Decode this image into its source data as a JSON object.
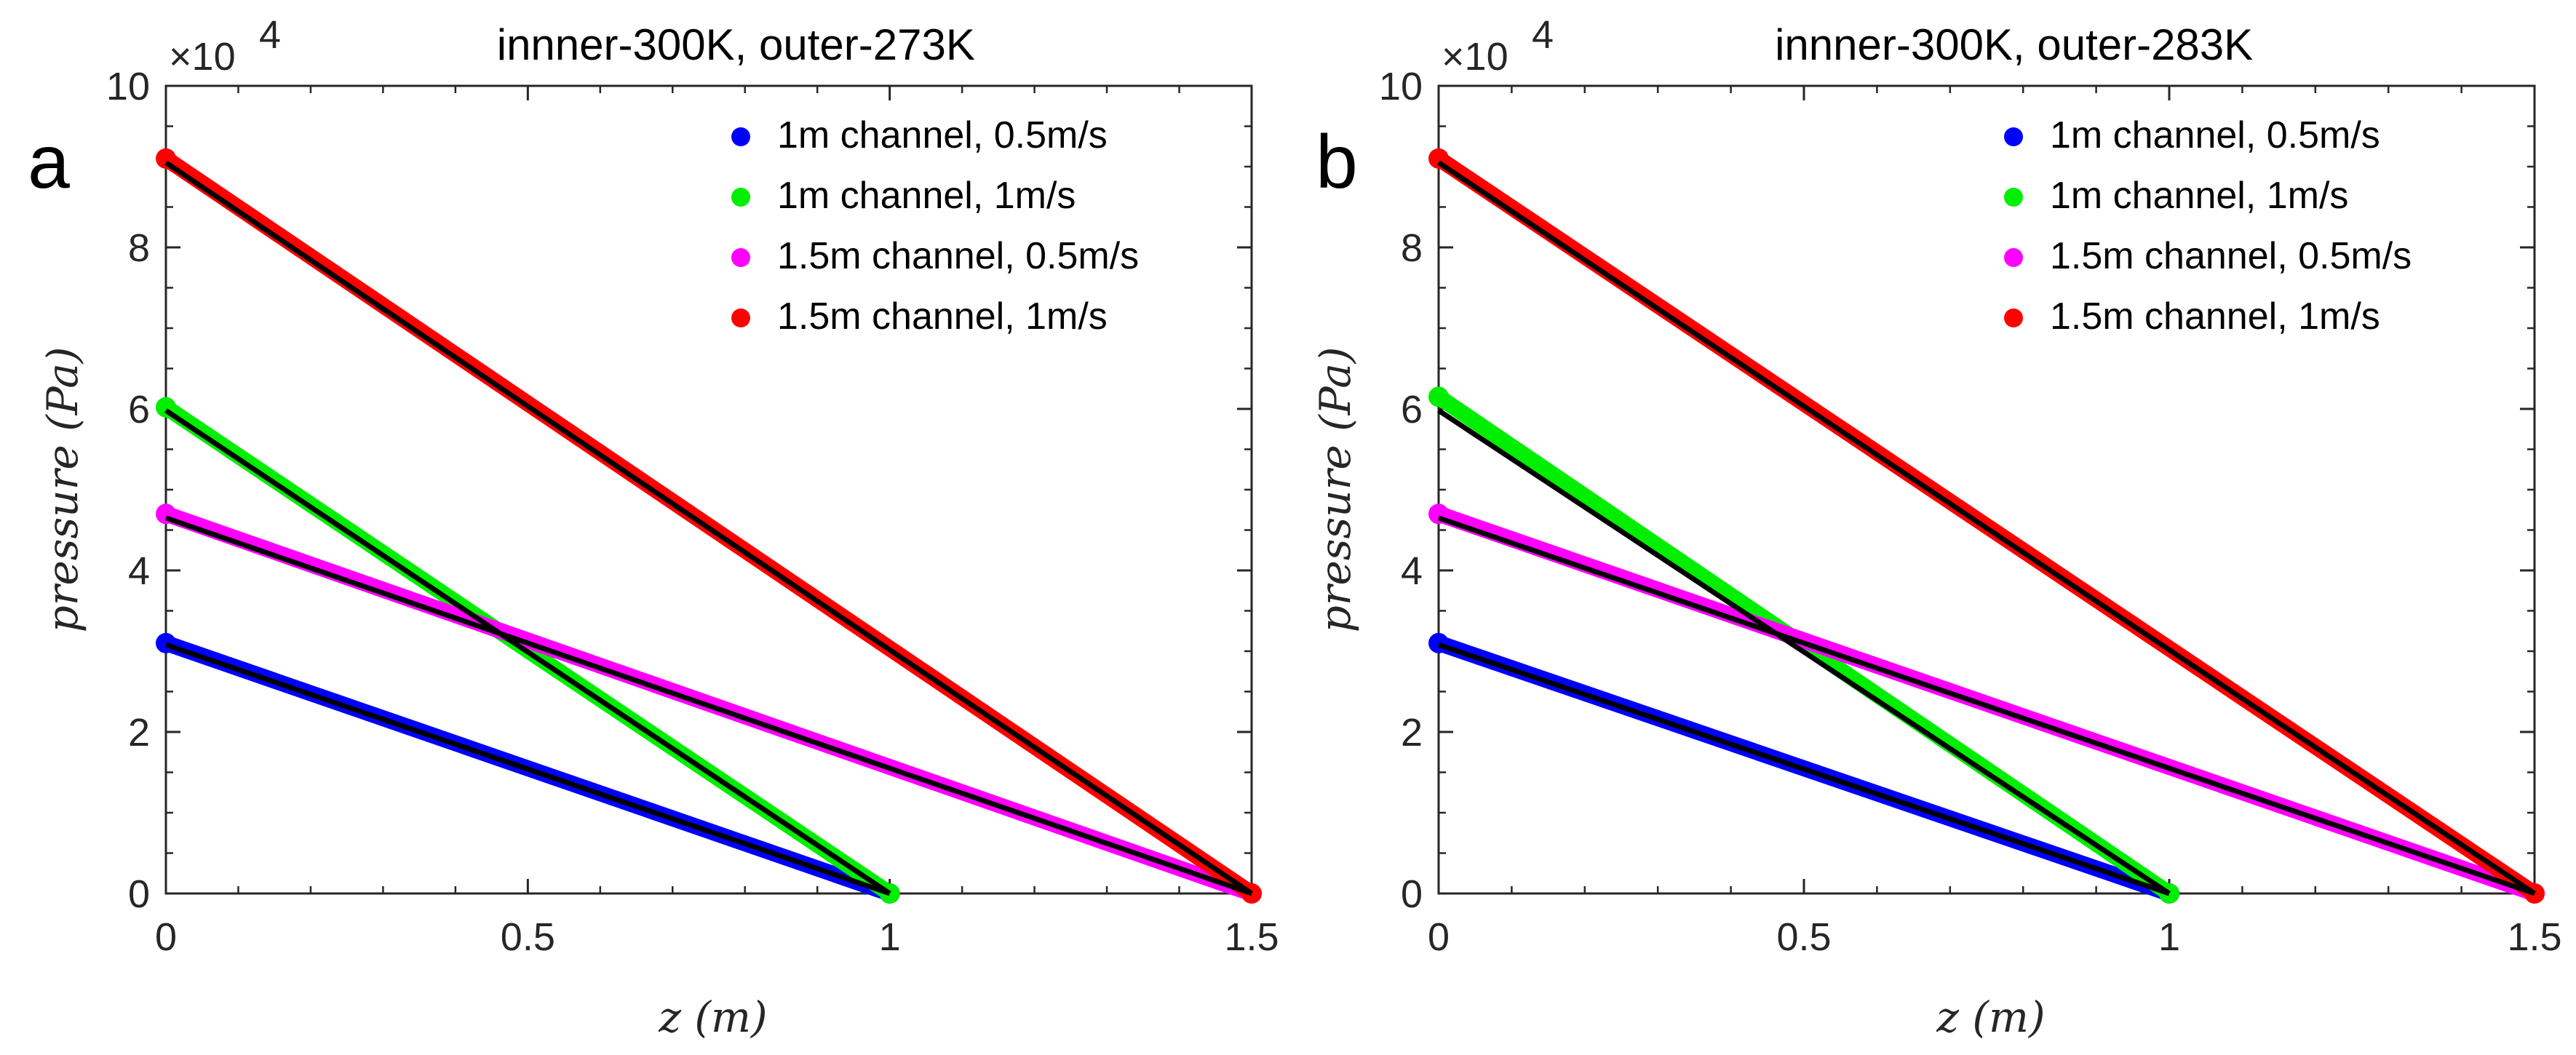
{
  "figure": {
    "description_panels": [
      "a",
      "b"
    ]
  },
  "chart_data": [
    {
      "type": "line",
      "panel_letter": "a",
      "title": "innner-300K, outer-273K",
      "xlabel": "z (m)",
      "ylabel": "pressure (Pa)",
      "xlim": [
        0,
        1.5
      ],
      "ylim": [
        0,
        100000
      ],
      "xticks": [
        "0",
        "0.5",
        "1",
        "1.5"
      ],
      "xtick_values": [
        0,
        0.5,
        1,
        1.5
      ],
      "yticks": [
        "0",
        "2",
        "4",
        "6",
        "8",
        "10"
      ],
      "ytick_values": [
        0,
        20000,
        40000,
        60000,
        80000,
        100000
      ],
      "y_exponent_label": "×10",
      "y_exponent_power": "4",
      "legend_position": "top-right",
      "series": [
        {
          "name": "1m channel, 0.5m/s",
          "color": "#0000ff",
          "x": [
            0,
            1.0
          ],
          "y": [
            31000,
            0
          ],
          "fit_x": [
            0,
            1.0
          ],
          "fit_y": [
            30800,
            0
          ]
        },
        {
          "name": "1m channel, 1m/s",
          "color": "#00ee00",
          "x": [
            0,
            1.0
          ],
          "y": [
            60200,
            0
          ],
          "fit_x": [
            0,
            1.0
          ],
          "fit_y": [
            59800,
            0
          ]
        },
        {
          "name": "1.5m channel, 0.5m/s",
          "color": "#ff00ff",
          "x": [
            0,
            1.5
          ],
          "y": [
            47000,
            0
          ],
          "fit_x": [
            0,
            1.5
          ],
          "fit_y": [
            46500,
            0
          ]
        },
        {
          "name": "1.5m channel, 1m/s",
          "color": "#ff0000",
          "x": [
            0,
            1.5
          ],
          "y": [
            91000,
            0
          ],
          "fit_x": [
            0,
            1.5
          ],
          "fit_y": [
            90500,
            0
          ]
        }
      ]
    },
    {
      "type": "line",
      "panel_letter": "b",
      "title": "innner-300K, outer-283K",
      "xlabel": "z (m)",
      "ylabel": "pressure (Pa)",
      "xlim": [
        0,
        1.5
      ],
      "ylim": [
        0,
        100000
      ],
      "xticks": [
        "0",
        "0.5",
        "1",
        "1.5"
      ],
      "xtick_values": [
        0,
        0.5,
        1,
        1.5
      ],
      "yticks": [
        "0",
        "2",
        "4",
        "6",
        "8",
        "10"
      ],
      "ytick_values": [
        0,
        20000,
        40000,
        60000,
        80000,
        100000
      ],
      "y_exponent_label": "×10",
      "y_exponent_power": "4",
      "legend_position": "top-right",
      "series": [
        {
          "name": "1m channel, 0.5m/s",
          "color": "#0000ff",
          "x": [
            0,
            1.0
          ],
          "y": [
            31000,
            0
          ],
          "fit_x": [
            0,
            1.0
          ],
          "fit_y": [
            30800,
            0
          ]
        },
        {
          "name": "1m channel, 1m/s",
          "color": "#00ee00",
          "x": [
            0,
            1.0
          ],
          "y": [
            61500,
            0
          ],
          "fit_x": [
            0,
            1.0
          ],
          "fit_y": [
            59800,
            0
          ]
        },
        {
          "name": "1.5m channel, 0.5m/s",
          "color": "#ff00ff",
          "x": [
            0,
            1.5
          ],
          "y": [
            47000,
            0
          ],
          "fit_x": [
            0,
            1.5
          ],
          "fit_y": [
            46500,
            0
          ]
        },
        {
          "name": "1.5m channel, 1m/s",
          "color": "#ff0000",
          "x": [
            0,
            1.5
          ],
          "y": [
            91000,
            0
          ],
          "fit_x": [
            0,
            1.5
          ],
          "fit_y": [
            90500,
            0
          ]
        }
      ]
    }
  ]
}
